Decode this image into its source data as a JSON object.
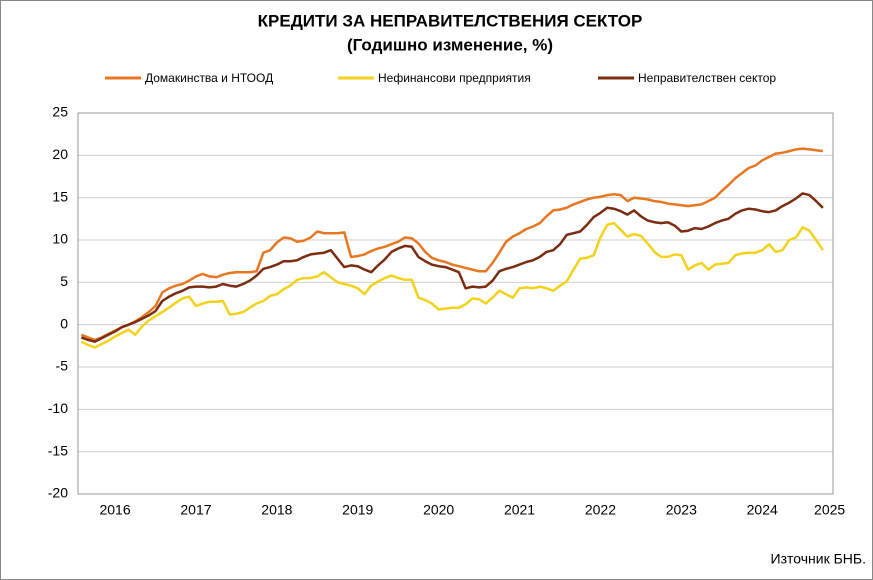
{
  "chart_data": {
    "type": "line",
    "title": "КРЕДИТИ ЗА НЕПРАВИТЕЛСТВЕНИЯ  СЕКТОР",
    "subtitle": "(Годишно  изменение, %)",
    "source": "Източник БНБ.",
    "categories": [
      null,
      null,
      null,
      null,
      null,
      "2016",
      null,
      null,
      null,
      null,
      null,
      null,
      null,
      null,
      null,
      null,
      null,
      "2017",
      null,
      null,
      null,
      null,
      null,
      null,
      null,
      null,
      null,
      null,
      null,
      "2018",
      null,
      null,
      null,
      null,
      null,
      null,
      null,
      null,
      null,
      null,
      null,
      "2019",
      null,
      null,
      null,
      null,
      null,
      null,
      null,
      null,
      null,
      null,
      null,
      "2020",
      null,
      null,
      null,
      null,
      null,
      null,
      null,
      null,
      null,
      null,
      null,
      "2021",
      null,
      null,
      null,
      null,
      null,
      null,
      null,
      null,
      null,
      null,
      null,
      "2022",
      null,
      null,
      null,
      null,
      null,
      null,
      null,
      null,
      null,
      null,
      null,
      "2023",
      null,
      null,
      null,
      null,
      null,
      null,
      null,
      null,
      null,
      null,
      null,
      "2024",
      null,
      null,
      null,
      null,
      null,
      null,
      null,
      null,
      null,
      "2025"
    ],
    "series": [
      {
        "name": "Домакинства и НТООД",
        "color": "#e87722",
        "values": [
          -1.2,
          -1.5,
          -1.8,
          -1.5,
          -1.1,
          -0.7,
          -0.3,
          0,
          0.4,
          0.9,
          1.5,
          2.2,
          3.8,
          4.3,
          4.6,
          4.8,
          5.2,
          5.7,
          6,
          5.7,
          5.6,
          5.9,
          6.1,
          6.2,
          6.2,
          6.2,
          6.3,
          8.5,
          8.8,
          9.7,
          10.3,
          10.2,
          9.8,
          9.9,
          10.3,
          11,
          10.8,
          10.8,
          10.8,
          10.9,
          8,
          8.1,
          8.3,
          8.7,
          9,
          9.2,
          9.5,
          9.8,
          10.3,
          10.2,
          9.6,
          8.6,
          7.9,
          7.6,
          7.4,
          7.1,
          6.9,
          6.7,
          6.5,
          6.3,
          6.3,
          7.3,
          8.5,
          9.8,
          10.4,
          10.8,
          11.3,
          11.6,
          12,
          12.8,
          13.5,
          13.6,
          13.8,
          14.2,
          14.5,
          14.8,
          15,
          15.1,
          15.3,
          15.4,
          15.3,
          14.6,
          15,
          14.9,
          14.8,
          14.6,
          14.5,
          14.3,
          14.2,
          14.1,
          14,
          14.1,
          14.2,
          14.6,
          15,
          15.8,
          16.5,
          17.3,
          17.9,
          18.5,
          18.8,
          19.4,
          19.8,
          20.2,
          20.3,
          20.5,
          20.7,
          20.8,
          20.7,
          20.6,
          20.5,
          null
        ]
      },
      {
        "name": "Нефинансови предприятия",
        "color": "#f2d21b",
        "values": [
          -2,
          -2.4,
          -2.7,
          -2.3,
          -1.9,
          -1.4,
          -1,
          -0.6,
          -1.2,
          -0.2,
          0.5,
          1,
          1.5,
          2,
          2.6,
          3.1,
          3.3,
          2.2,
          2.5,
          2.7,
          2.7,
          2.8,
          1.2,
          1.3,
          1.5,
          2,
          2.5,
          2.8,
          3.4,
          3.6,
          4.2,
          4.6,
          5.3,
          5.5,
          5.5,
          5.7,
          6.2,
          5.6,
          5,
          4.8,
          4.6,
          4.3,
          3.6,
          4.6,
          5.1,
          5.5,
          5.8,
          5.5,
          5.3,
          5.3,
          3.2,
          2.9,
          2.5,
          1.8,
          1.9,
          2,
          2,
          2.4,
          3.1,
          3,
          2.5,
          3.2,
          4,
          3.6,
          3.2,
          4.3,
          4.4,
          4.3,
          4.5,
          4.3,
          4,
          4.6,
          5.1,
          6.5,
          7.8,
          7.9,
          8.2,
          10.3,
          11.8,
          12,
          11.2,
          10.4,
          10.7,
          10.5,
          9.6,
          8.6,
          8,
          8,
          8.3,
          8.2,
          6.5,
          7,
          7.3,
          6.5,
          7.1,
          7.2,
          7.3,
          8.2,
          8.4,
          8.5,
          8.5,
          8.8,
          9.5,
          8.6,
          8.8,
          10,
          10.3,
          11.5,
          11.1,
          10,
          8.8,
          null
        ]
      },
      {
        "name": "Неправителствен сектор",
        "color": "#7b2d12",
        "values": [
          -1.5,
          -1.8,
          -2,
          -1.6,
          -1.2,
          -0.8,
          -0.3,
          0,
          0.3,
          0.7,
          1.1,
          1.6,
          2.8,
          3.3,
          3.7,
          4,
          4.4,
          4.5,
          4.5,
          4.4,
          4.5,
          4.8,
          4.6,
          4.5,
          4.8,
          5.2,
          5.8,
          6.6,
          6.8,
          7.1,
          7.5,
          7.5,
          7.6,
          8,
          8.3,
          8.4,
          8.5,
          8.8,
          7.8,
          6.8,
          7,
          6.9,
          6.5,
          6.2,
          7,
          7.7,
          8.6,
          9,
          9.3,
          9.2,
          8,
          7.5,
          7.1,
          6.9,
          6.8,
          6.5,
          6.2,
          4.3,
          4.5,
          4.4,
          4.5,
          5.2,
          6.3,
          6.6,
          6.8,
          7.1,
          7.4,
          7.6,
          8,
          8.6,
          8.8,
          9.5,
          10.6,
          10.8,
          11,
          11.8,
          12.7,
          13.2,
          13.8,
          13.7,
          13.4,
          13,
          13.5,
          12.8,
          12.3,
          12.1,
          12,
          12.1,
          11.7,
          11,
          11.1,
          11.4,
          11.3,
          11.6,
          12,
          12.3,
          12.5,
          13.1,
          13.5,
          13.7,
          13.6,
          13.4,
          13.3,
          13.5,
          14,
          14.4,
          14.9,
          15.5,
          15.3,
          14.6,
          13.8,
          null
        ]
      }
    ],
    "ylim": [
      -20,
      25
    ],
    "yticks": [
      -20,
      -15,
      -10,
      -5,
      0,
      5,
      10,
      15,
      20,
      25
    ],
    "grid": true
  }
}
